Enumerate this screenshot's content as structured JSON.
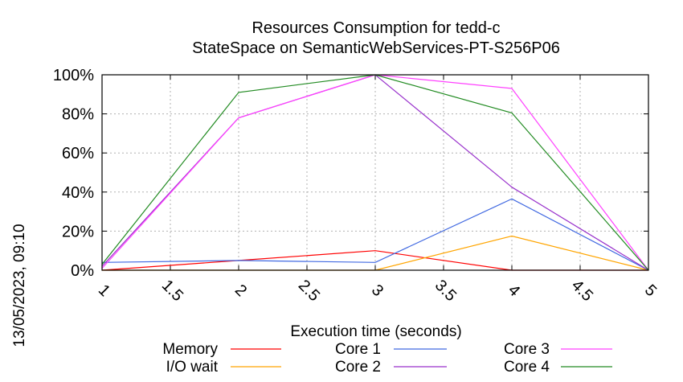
{
  "chart_data": {
    "type": "line",
    "title": "Resources Consumption for tedd-c",
    "subtitle": "StateSpace on SemanticWebServices-PT-S256P06",
    "xlabel": "Execution time (seconds)",
    "ylabel": "",
    "side_label": "13/05/2023, 09:10",
    "xlim": [
      1,
      5
    ],
    "ylim": [
      0,
      100
    ],
    "x_ticks": [
      1,
      1.5,
      2,
      2.5,
      3,
      3.5,
      4,
      4.5,
      5
    ],
    "x_tick_labels": [
      "1",
      "1.5",
      "2",
      "2.5",
      "3",
      "3.5",
      "4",
      "4.5",
      "5"
    ],
    "y_ticks": [
      0,
      20,
      40,
      60,
      80,
      100
    ],
    "y_tick_labels": [
      "0%",
      "20%",
      "40%",
      "60%",
      "80%",
      "100%"
    ],
    "grid": true,
    "legend_position": "bottom",
    "x": [
      1,
      2,
      3,
      4,
      5
    ],
    "series": [
      {
        "name": "Memory",
        "color": "#ff0000",
        "values": [
          0,
          5,
          10,
          0,
          0
        ]
      },
      {
        "name": "I/O wait",
        "color": "#ffa500",
        "values": [
          0,
          0,
          0,
          17.5,
          0
        ]
      },
      {
        "name": "Core 1",
        "color": "#4169e1",
        "values": [
          4,
          5,
          4,
          36.5,
          0
        ]
      },
      {
        "name": "Core 2",
        "color": "#9932cc",
        "values": [
          2,
          78,
          100,
          42.5,
          0
        ]
      },
      {
        "name": "Core 3",
        "color": "#ff40ff",
        "values": [
          1,
          78,
          100,
          93,
          0
        ]
      },
      {
        "name": "Core 4",
        "color": "#228b22",
        "values": [
          3,
          91,
          100,
          80.5,
          0
        ]
      }
    ]
  }
}
